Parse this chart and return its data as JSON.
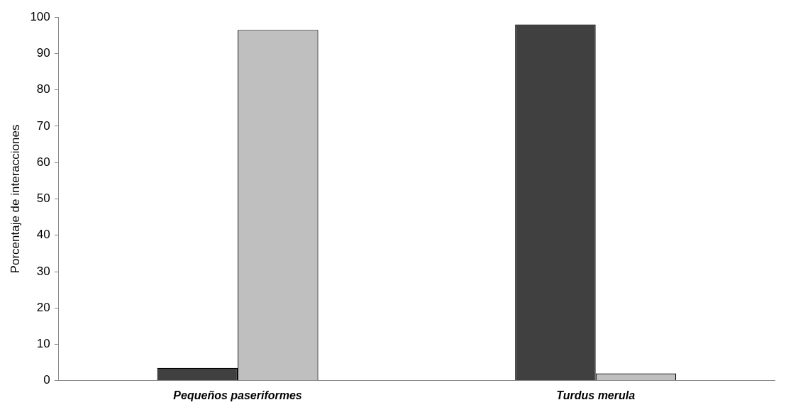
{
  "chart_data": {
    "type": "bar",
    "ylabel": "Porcentaje de interacciones",
    "categories": [
      "Pequeños paseriformes",
      "Turdus merula"
    ],
    "series": [
      {
        "color": "#404040",
        "values": [
          3.5,
          98
        ]
      },
      {
        "color": "#bfbfbf",
        "values": [
          96.5,
          2
        ]
      }
    ],
    "ylim": [
      0,
      100
    ],
    "yticks": [
      0,
      10,
      20,
      30,
      40,
      50,
      60,
      70,
      80,
      90,
      100
    ],
    "grid": false,
    "legend": false
  }
}
